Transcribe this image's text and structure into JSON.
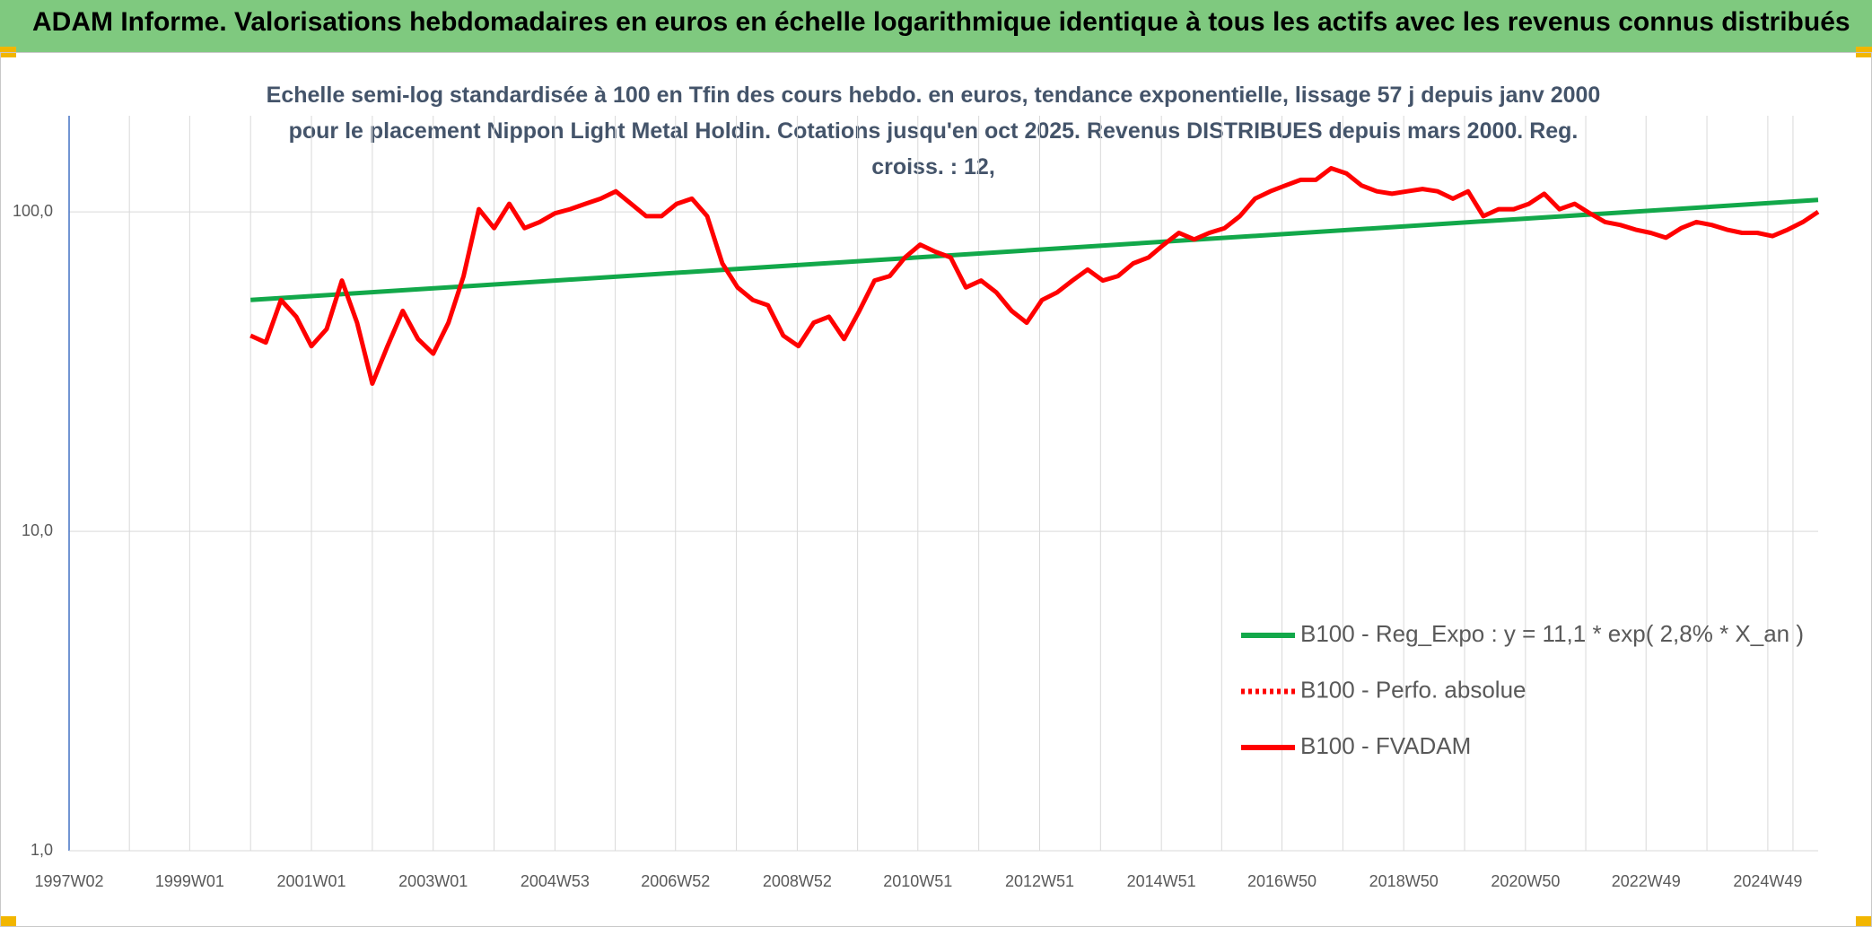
{
  "chart_data": {
    "type": "line",
    "suptitle": "ADAM Informe. Valorisations hebdomadaires en euros en échelle logarithmique identique à tous les actifs avec les revenus connus distribués",
    "title": "Echelle semi-log standardisée à 100 en Tfin des cours hebdo. en euros, tendance exponentielle, lissage 57 j depuis janv 2000 pour le placement Nippon Light Metal Holdin. Cotations jusqu'en oct 2025. Revenus DISTRIBUES depuis mars 2000. Reg. croiss. : 12,",
    "log_scale": true,
    "grid": true,
    "legend": "lower right",
    "xlim": [
      "1997W02",
      "2025W40"
    ],
    "xticks": [
      "1997W02",
      "1999W01",
      "2001W01",
      "2003W01",
      "2004W53",
      "2006W52",
      "2008W52",
      "2010W51",
      "2012W51",
      "2014W51",
      "2016W50",
      "2018W50",
      "2020W50",
      "2022W49",
      "2024W49"
    ],
    "ylim": [
      1,
      200
    ],
    "yticks": [
      {
        "value": 1,
        "label": "1,0"
      },
      {
        "value": 10,
        "label": "10,0"
      },
      {
        "value": 100,
        "label": "100,0"
      }
    ],
    "series": [
      {
        "name": "B100 - Reg_Expo : y = 11,1 * exp( 2,8% *  X_an )",
        "color": "#12a84a",
        "style": "solid",
        "x": [
          "2000W01",
          "2025W40"
        ],
        "values": [
          53,
          109
        ]
      },
      {
        "name": "B100 - Perfo. absolue",
        "color": "#ff0000",
        "style": "dotted",
        "x": [],
        "values": []
      },
      {
        "name": "B100 - FVADAM",
        "color": "#ff0000",
        "style": "solid",
        "x": [
          "2000W01",
          "2000W14",
          "2000W27",
          "2000W40",
          "2001W01",
          "2001W14",
          "2001W27",
          "2001W40",
          "2002W01",
          "2002W14",
          "2002W27",
          "2002W40",
          "2003W01",
          "2003W14",
          "2003W27",
          "2003W40",
          "2004W01",
          "2004W14",
          "2004W27",
          "2004W40",
          "2005W01",
          "2005W14",
          "2005W27",
          "2005W40",
          "2006W01",
          "2006W14",
          "2006W27",
          "2006W40",
          "2007W01",
          "2007W14",
          "2007W27",
          "2007W40",
          "2008W01",
          "2008W14",
          "2008W27",
          "2008W40",
          "2009W01",
          "2009W14",
          "2009W27",
          "2009W40",
          "2010W01",
          "2010W14",
          "2010W27",
          "2010W40",
          "2011W01",
          "2011W14",
          "2011W27",
          "2011W40",
          "2012W01",
          "2012W14",
          "2012W27",
          "2012W40",
          "2013W01",
          "2013W14",
          "2013W27",
          "2013W40",
          "2014W01",
          "2014W14",
          "2014W27",
          "2014W40",
          "2015W01",
          "2015W14",
          "2015W27",
          "2015W40",
          "2016W01",
          "2016W14",
          "2016W27",
          "2016W40",
          "2017W01",
          "2017W14",
          "2017W27",
          "2017W40",
          "2018W01",
          "2018W14",
          "2018W27",
          "2018W40",
          "2019W01",
          "2019W14",
          "2019W27",
          "2019W40",
          "2020W01",
          "2020W14",
          "2020W27",
          "2020W40",
          "2021W01",
          "2021W14",
          "2021W27",
          "2021W40",
          "2022W01",
          "2022W14",
          "2022W27",
          "2022W40",
          "2023W01",
          "2023W14",
          "2023W27",
          "2023W40",
          "2024W01",
          "2024W14",
          "2024W27",
          "2024W40",
          "2025W01",
          "2025W14",
          "2025W27",
          "2025W40"
        ],
        "values": [
          41,
          39,
          53,
          47,
          38,
          43,
          61,
          45,
          29,
          38,
          49,
          40,
          36,
          45,
          63,
          102,
          89,
          106,
          89,
          93,
          99,
          102,
          106,
          110,
          116,
          106,
          97,
          97,
          106,
          110,
          97,
          69,
          58,
          53,
          51,
          41,
          38,
          45,
          47,
          40,
          49,
          61,
          63,
          72,
          79,
          75,
          72,
          58,
          61,
          56,
          49,
          45,
          53,
          56,
          61,
          66,
          61,
          63,
          69,
          72,
          79,
          86,
          82,
          86,
          89,
          97,
          110,
          116,
          121,
          126,
          126,
          137,
          132,
          121,
          116,
          114,
          116,
          118,
          116,
          110,
          116,
          97,
          102,
          102,
          106,
          114,
          102,
          106,
          99,
          93,
          91,
          88,
          86,
          83,
          89,
          93,
          91,
          88,
          86,
          86,
          84,
          88,
          93,
          100
        ]
      }
    ]
  }
}
